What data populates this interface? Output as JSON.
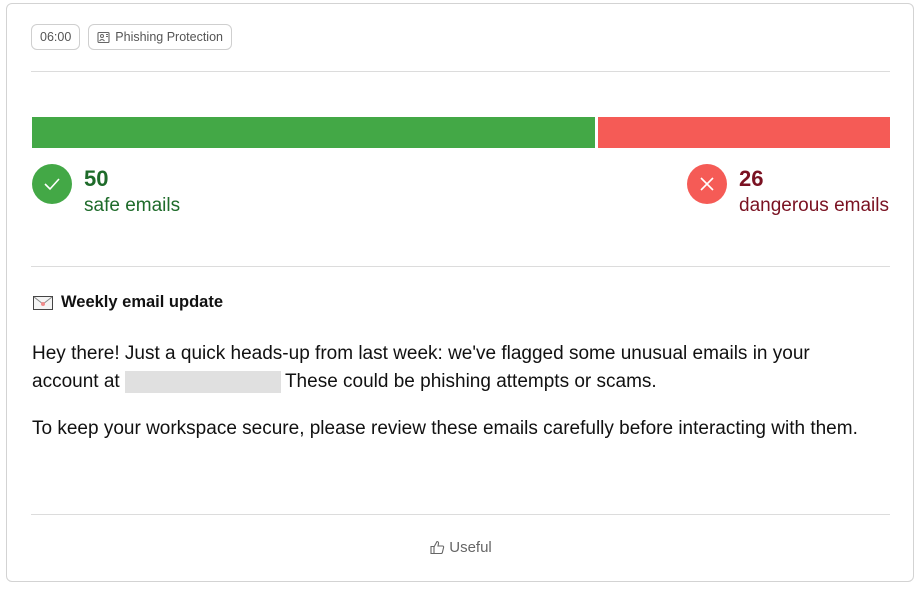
{
  "chips": {
    "time": "06:00",
    "category": "Phishing Protection",
    "category_icon": "image-person-icon"
  },
  "stats": {
    "safe": {
      "count": "50",
      "label": "safe emails",
      "value": 50,
      "color": "#43a846",
      "text_color": "#1e6b2a",
      "icon": "check-icon"
    },
    "dangerous": {
      "count": "26",
      "label": "dangerous emails",
      "value": 26,
      "color": "#f55b56",
      "text_color": "#7a1222",
      "icon": "x-icon"
    }
  },
  "update": {
    "title": "Weekly email update",
    "icon": "envelope-icon",
    "p1_a": "Hey there! Just a quick heads-up from last week: we've flagged some unusual emails in your account at",
    "p1_b": "These could be phishing attempts or scams.",
    "p2": "To keep your workspace secure, please review these emails carefully before interacting with them."
  },
  "footer": {
    "useful_label": "Useful",
    "icon": "thumbs-up-icon"
  }
}
